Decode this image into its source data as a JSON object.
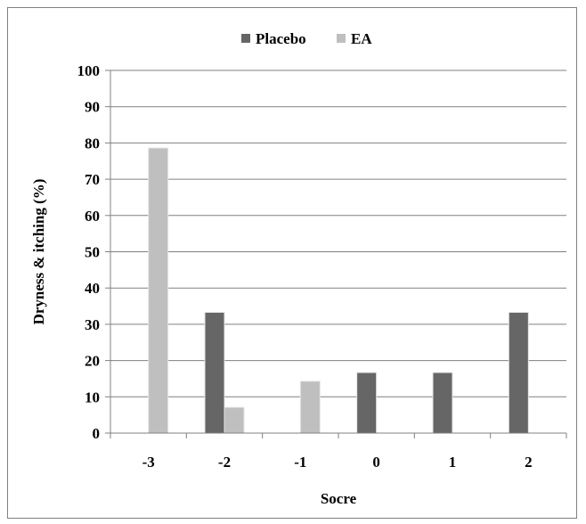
{
  "chart_data": {
    "type": "bar",
    "xlabel": "Socre",
    "ylabel": "Dryness & itching (%)",
    "categories": [
      "-3",
      "-2",
      "-1",
      "0",
      "1",
      "2"
    ],
    "ylim": [
      0,
      100
    ],
    "yticks": [
      0,
      10,
      20,
      30,
      40,
      50,
      60,
      70,
      80,
      90,
      100
    ],
    "grid": true,
    "legend_position": "top-center",
    "series": [
      {
        "name": "Placebo",
        "color": "#666666",
        "values": [
          0,
          33.3,
          0,
          16.7,
          16.7,
          33.3
        ]
      },
      {
        "name": "EA",
        "color": "#bfbfbf",
        "values": [
          78.6,
          7.1,
          14.3,
          0,
          0,
          0
        ]
      }
    ]
  }
}
